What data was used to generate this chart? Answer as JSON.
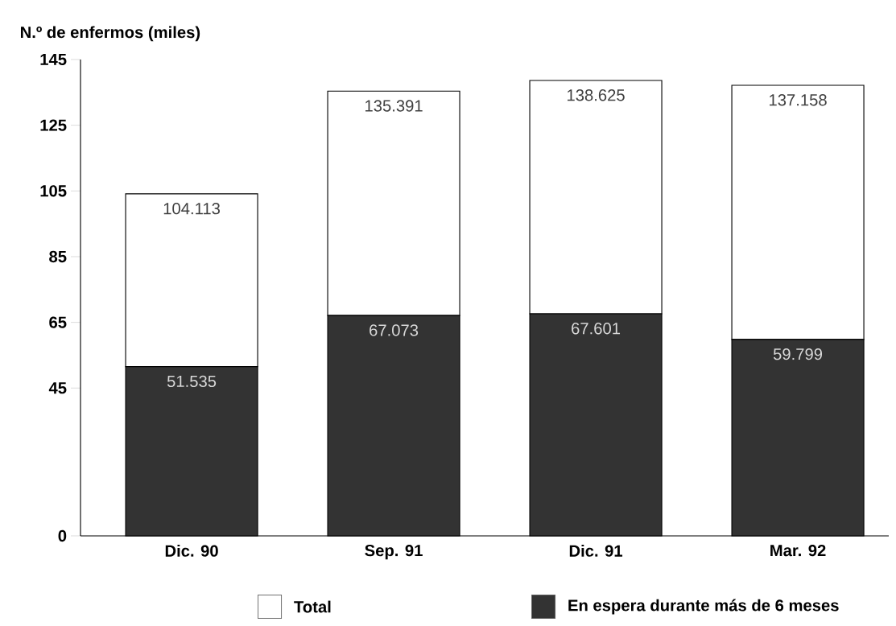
{
  "chart_data": {
    "type": "bar",
    "stacked": true,
    "ylabel": "N.º de enfermos (miles)",
    "categories": [
      "Dic. 90",
      "Sep. 91",
      "Dic. 91",
      "Mar. 92"
    ],
    "series": [
      {
        "name": "En espera durante más de 6 meses",
        "color": "#333333",
        "values": [
          51.535,
          67.073,
          67.601,
          59.799
        ],
        "value_labels": [
          "51.535",
          "67.073",
          "67.601",
          "59.799"
        ]
      },
      {
        "name": "Total",
        "color": "#ffffff",
        "values": [
          52.578,
          68.318,
          71.024,
          77.359
        ]
      }
    ],
    "totals": [
      "104.113",
      "135.391",
      "138.625",
      "137.158"
    ],
    "ylim": [
      0,
      145
    ],
    "yticks": [
      0,
      45,
      65,
      85,
      105,
      125,
      145
    ],
    "grid": false,
    "legend": "bottom"
  }
}
